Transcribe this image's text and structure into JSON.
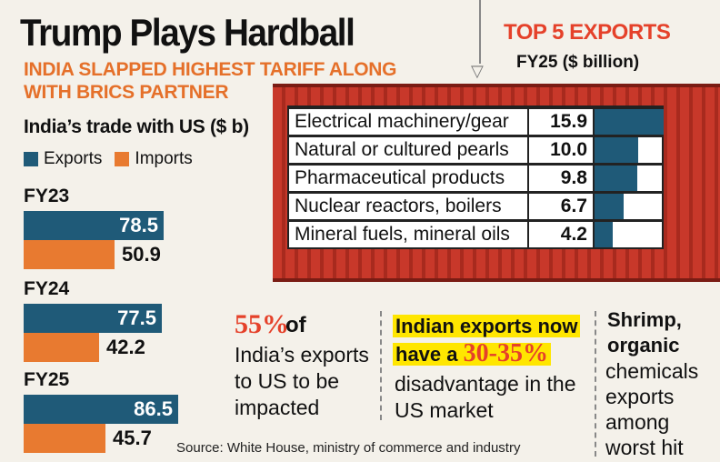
{
  "header": {
    "title": "Trump Plays Hardball",
    "subtitle": "INDIA SLAPPED HIGHEST TARIFF ALONG WITH BRICS PARTNER"
  },
  "trade": {
    "title": "India’s trade with US ($ b)",
    "legend": {
      "exports": "Exports",
      "imports": "Imports"
    },
    "colors": {
      "exports": "#1f5a78",
      "imports": "#e87a30"
    }
  },
  "top5": {
    "title": "TOP 5 EXPORTS",
    "subtitle": "FY25 ($ billion)"
  },
  "chart_data": [
    {
      "type": "bar",
      "title": "India’s trade with US ($ b)",
      "categories": [
        "FY23",
        "FY24",
        "FY25"
      ],
      "series": [
        {
          "name": "Exports",
          "values": [
            78.5,
            77.5,
            86.5
          ]
        },
        {
          "name": "Imports",
          "values": [
            50.9,
            42.2,
            45.7
          ]
        }
      ]
    },
    {
      "type": "bar",
      "title": "TOP 5 EXPORTS",
      "subtitle": "FY25 ($ billion)",
      "categories": [
        "Electrical machinery/gear",
        "Natural or cultured pearls",
        "Pharmaceutical products",
        "Nuclear reactors, boilers",
        "Mineral fuels, mineral oils"
      ],
      "values": [
        15.9,
        10.0,
        9.8,
        6.7,
        4.2
      ],
      "value_labels": [
        "15.9",
        "10.0",
        "9.8",
        "6.7",
        "4.2"
      ]
    }
  ],
  "callouts": {
    "stat_big": "55%",
    "stat_of": "of",
    "stat_text": "India’s exports to US to be impacted",
    "ie_head_1": "Indian exports now",
    "ie_head_2": "have a",
    "ie_pct": "30-35%",
    "ie_text": "disadvantage in the US market",
    "shrimp_head": "Shrimp, organic",
    "shrimp_text": "chemicals exports among worst hit"
  },
  "source": "Source: White House, ministry of commerce and industry"
}
